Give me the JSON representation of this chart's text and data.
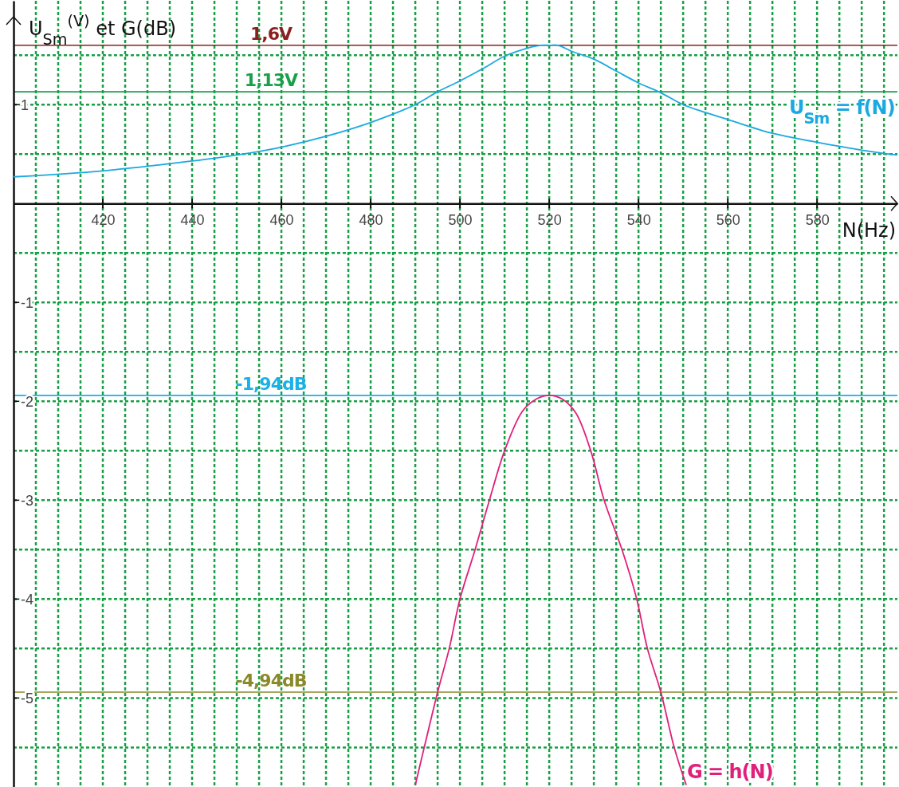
{
  "chart_data": {
    "type": "line",
    "xlabel": "N(Hz)",
    "ylabel": "U$_{Sm}$$^{(V)}$ et G(dB)",
    "xlim": [
      400,
      598
    ],
    "ylim": [
      -5.9,
      2.05
    ],
    "xticks": [
      {
        "value": 405,
        "label": null
      },
      {
        "value": 410,
        "label": null
      },
      {
        "value": 415,
        "label": null
      },
      420,
      {
        "value": 425,
        "label": null
      },
      {
        "value": 430,
        "label": null
      },
      {
        "value": 435,
        "label": null
      },
      440,
      {
        "value": 445,
        "label": null
      },
      {
        "value": 450,
        "label": null
      },
      {
        "value": 455,
        "label": null
      },
      460,
      {
        "value": 465,
        "label": null
      },
      {
        "value": 470,
        "label": null
      },
      {
        "value": 475,
        "label": null
      },
      480,
      {
        "value": 485,
        "label": null
      },
      {
        "value": 490,
        "label": null
      },
      {
        "value": 495,
        "label": null
      },
      500,
      {
        "value": 505,
        "label": null
      },
      {
        "value": 510,
        "label": null
      },
      {
        "value": 515,
        "label": null
      },
      520,
      {
        "value": 525,
        "label": null
      },
      {
        "value": 530,
        "label": null
      },
      {
        "value": 535,
        "label": null
      },
      540,
      {
        "value": 545,
        "label": null
      },
      {
        "value": 550,
        "label": null
      },
      {
        "value": 555,
        "label": null
      },
      560,
      {
        "value": 565,
        "label": null
      },
      {
        "value": 570,
        "label": null
      },
      {
        "value": 575,
        "label": null
      },
      580,
      {
        "value": 585,
        "label": null
      },
      {
        "value": 590,
        "label": null
      },
      {
        "value": 595,
        "label": null
      }
    ],
    "yticks": [
      {
        "value": -5.5,
        "label": null
      },
      -5,
      {
        "value": -4.5,
        "label": null
      },
      -4,
      {
        "value": -3.5,
        "label": null
      },
      -3,
      {
        "value": -2.5,
        "label": null
      },
      -2,
      {
        "value": -1.5,
        "label": null
      },
      -1,
      {
        "value": -0.5,
        "label": null
      },
      {
        "value": 0.5,
        "label": null
      },
      1,
      {
        "value": 1.5,
        "label": null
      }
    ],
    "grid": true,
    "series": [
      {
        "name": "U$_{Sm}$ = f(N)",
        "color": "#1aa9e0",
        "x": [
          400,
          420,
          440,
          450,
          460,
          470,
          480,
          490,
          495,
          500,
          505,
          510,
          515,
          518,
          520,
          522,
          525,
          530,
          535,
          540,
          545,
          550,
          555,
          560,
          570,
          580,
          590,
          598
        ],
        "values": [
          0.27,
          0.33,
          0.43,
          0.49,
          0.57,
          0.68,
          0.82,
          1.0,
          1.13,
          1.24,
          1.36,
          1.49,
          1.57,
          1.6,
          1.6,
          1.6,
          1.54,
          1.46,
          1.34,
          1.22,
          1.12,
          1.0,
          0.92,
          0.85,
          0.71,
          0.62,
          0.54,
          0.49
        ]
      },
      {
        "name": "G = h(N)",
        "color": "#e0207a",
        "x": [
          490,
          492,
          495,
          497.6,
          500,
          503.4,
          506.6,
          510,
          514,
          517,
          520,
          523,
          526,
          529.3,
          532.3,
          536.3,
          539.6,
          542,
          545,
          548,
          550.7
        ],
        "values": [
          -5.88,
          -5.5,
          -4.94,
          -4.5,
          -4.0,
          -3.5,
          -3.0,
          -2.5,
          -2.1,
          -1.98,
          -1.94,
          -1.98,
          -2.12,
          -2.5,
          -3.0,
          -3.5,
          -4.0,
          -4.5,
          -4.94,
          -5.5,
          -5.88
        ]
      }
    ],
    "ref_lines": [
      {
        "axis": "y",
        "value": 1.6,
        "label": "1,6V",
        "color": "#8b1f1f"
      },
      {
        "axis": "y",
        "value": 1.13,
        "label": "1,13V",
        "color": "#1aa04a"
      },
      {
        "axis": "y",
        "value": -1.94,
        "label": "-1,94dB",
        "color": "#1ab0e8"
      },
      {
        "axis": "y",
        "value": -4.94,
        "label": "-4,94dB",
        "color": "#8a8a2a"
      }
    ]
  }
}
